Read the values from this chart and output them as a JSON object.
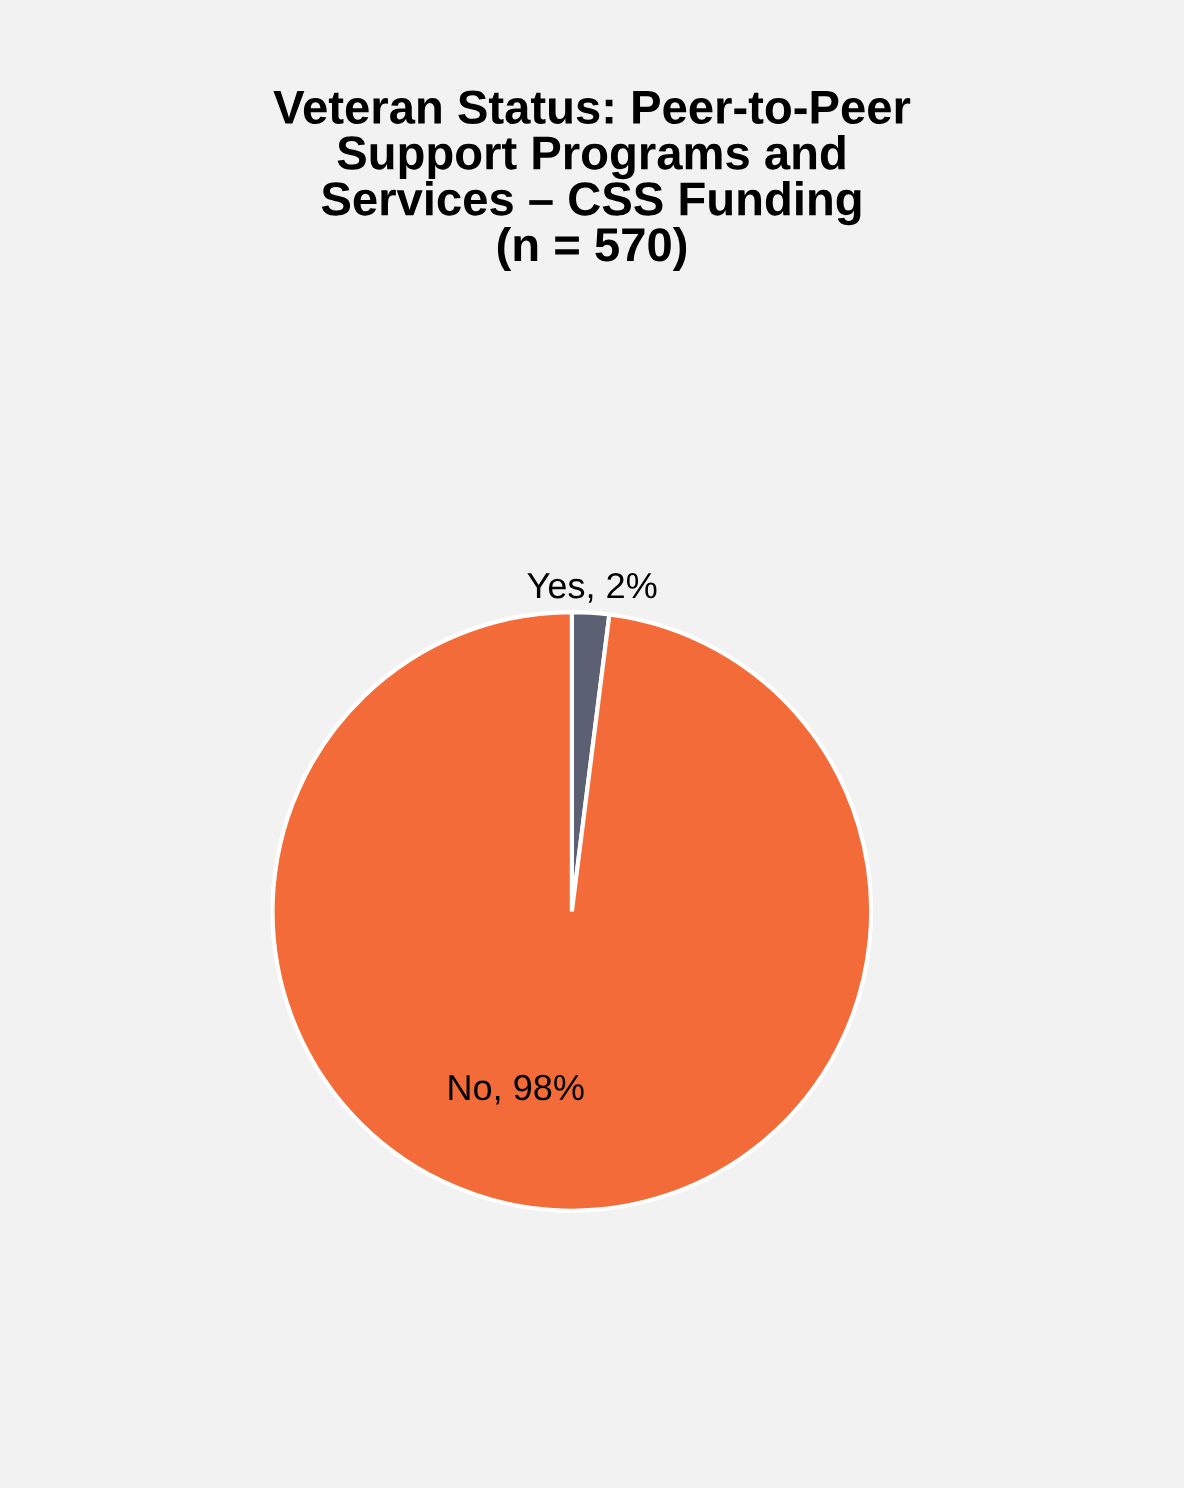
{
  "chart_data": {
    "type": "pie",
    "title": "Veteran Status: Peer-to-Peer\nSupport Programs and\nServices – CSS Funding\n(n = 570)",
    "categories": [
      "Yes",
      "No"
    ],
    "values": [
      2,
      98
    ],
    "colors": [
      "#5b6173",
      "#f26b38"
    ],
    "value_labels": [
      "2%",
      "98%"
    ],
    "legend": false
  }
}
